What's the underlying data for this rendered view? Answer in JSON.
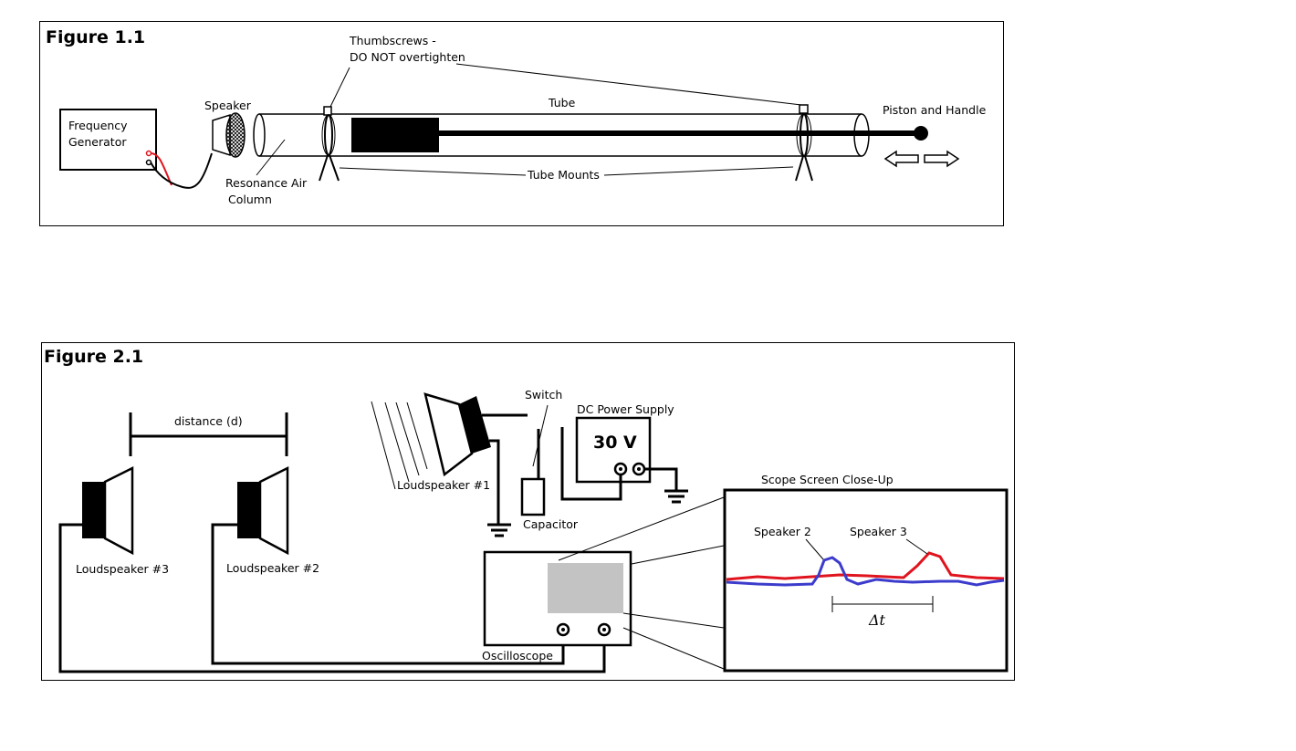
{
  "figure1": {
    "title": "Figure 1.1",
    "labels": {
      "frequency_generator_1": "Frequency",
      "frequency_generator_2": "Generator",
      "speaker": "Speaker",
      "thumbscrews_1": "Thumbscrews -",
      "thumbscrews_2": "DO NOT overtighten",
      "tube": "Tube",
      "piston": "Piston and Handle",
      "resonance_1": "Resonance Air",
      "resonance_2": "Column",
      "tube_mounts": "Tube Mounts"
    }
  },
  "figure2": {
    "title": "Figure 2.1",
    "labels": {
      "distance": "distance (d)",
      "switch": "Switch",
      "dc_power_supply": "DC Power Supply",
      "voltage": "30 V",
      "loudspeaker1": "Loudspeaker #1",
      "capacitor": "Capacitor",
      "scope_closeup": "Scope Screen Close-Up",
      "speaker2": "Speaker 2",
      "speaker3": "Speaker 3",
      "delta_t": "Δt",
      "loudspeaker3": "Loudspeaker #3",
      "loudspeaker2": "Loudspeaker #2",
      "oscilloscope": "Oscilloscope"
    },
    "colors": {
      "trace_red": "#e0141e",
      "trace_blue": "#3c3ccc",
      "screen_gray": "#c3c3c3"
    }
  }
}
